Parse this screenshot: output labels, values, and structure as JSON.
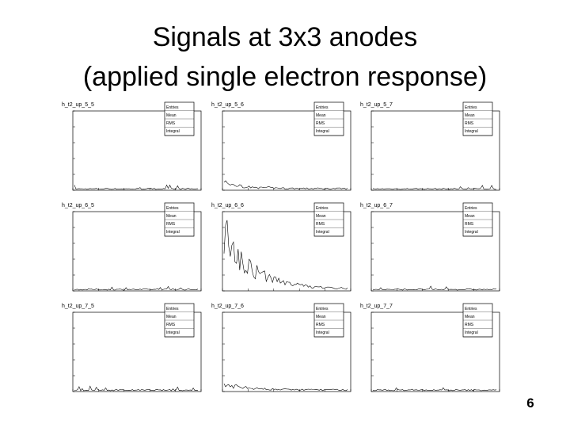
{
  "header": {
    "title_lines": [
      "Signals at 3x3 anodes",
      "(applied single electron response)"
    ]
  },
  "panels": [
    {
      "name": "h_t2_up_5_5",
      "stats": [
        "Entries",
        "Mean",
        "RMS",
        "Integral"
      ]
    },
    {
      "name": "h_t2_up_5_6",
      "stats": [
        "Entries",
        "Mean",
        "RMS",
        "Integral"
      ]
    },
    {
      "name": "h_t2_up_5_7",
      "stats": [
        "Entries",
        "Mean",
        "RMS",
        "Integral"
      ]
    },
    {
      "name": "h_t2_up_6_5",
      "stats": [
        "Entries",
        "Mean",
        "RMS",
        "Integral"
      ]
    },
    {
      "name": "h_t2_up_6_6",
      "stats": [
        "Entries",
        "Mean",
        "RMS",
        "Integral"
      ]
    },
    {
      "name": "h_t2_up_6_7",
      "stats": [
        "Entries",
        "Mean",
        "RMS",
        "Integral"
      ]
    },
    {
      "name": "h_t2_up_7_5",
      "stats": [
        "Entries",
        "Mean",
        "RMS",
        "Integral"
      ]
    },
    {
      "name": "h_t2_up_7_6",
      "stats": [
        "Entries",
        "Mean",
        "RMS",
        "Integral"
      ]
    },
    {
      "name": "h_t2_up_7_7",
      "stats": [
        "Entries",
        "Mean",
        "RMS",
        "Integral"
      ]
    }
  ],
  "footer": {
    "page_number": "6"
  }
}
